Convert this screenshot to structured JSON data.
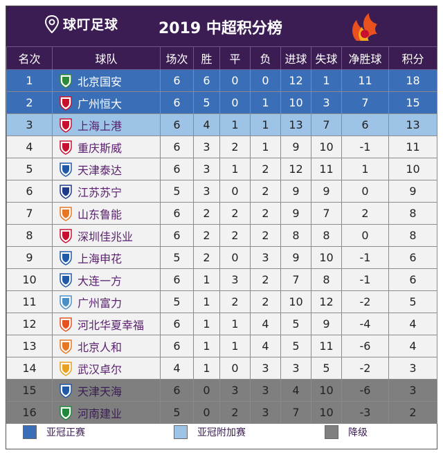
{
  "header": {
    "logo_text": "球叮足球",
    "title": "2019 中超积分榜"
  },
  "columns": [
    "名次",
    "球队",
    "场次",
    "胜",
    "平",
    "负",
    "进球",
    "失球",
    "净胜球",
    "积分"
  ],
  "colors": {
    "header_bg": "#3b1d53",
    "acl_direct": "#3a6fb8",
    "acl_playoff": "#9dc3e6",
    "relegation": "#7f7f7f",
    "normal": "#f2f2f2"
  },
  "rows": [
    {
      "rank": "1",
      "team": "北京国安",
      "played": "6",
      "won": "6",
      "drawn": "0",
      "lost": "0",
      "gf": "12",
      "ga": "1",
      "gd": "11",
      "pts": "18",
      "zone": "acl",
      "crest": "#2e8b3a"
    },
    {
      "rank": "2",
      "team": "广州恒大",
      "played": "6",
      "won": "5",
      "drawn": "0",
      "lost": "1",
      "gf": "10",
      "ga": "3",
      "gd": "7",
      "pts": "15",
      "zone": "acl",
      "crest": "#c8102e"
    },
    {
      "rank": "3",
      "team": "上海上港",
      "played": "6",
      "won": "4",
      "drawn": "1",
      "lost": "1",
      "gf": "13",
      "ga": "7",
      "gd": "6",
      "pts": "13",
      "zone": "pre",
      "crest": "#c8102e"
    },
    {
      "rank": "4",
      "team": "重庆斯威",
      "played": "6",
      "won": "3",
      "drawn": "2",
      "lost": "1",
      "gf": "9",
      "ga": "10",
      "gd": "-1",
      "pts": "11",
      "zone": "norm",
      "crest": "#c8102e"
    },
    {
      "rank": "5",
      "team": "天津泰达",
      "played": "6",
      "won": "3",
      "drawn": "1",
      "lost": "2",
      "gf": "12",
      "ga": "11",
      "gd": "1",
      "pts": "10",
      "zone": "norm",
      "crest": "#1e5aa8"
    },
    {
      "rank": "6",
      "team": "江苏苏宁",
      "played": "5",
      "won": "3",
      "drawn": "0",
      "lost": "2",
      "gf": "9",
      "ga": "9",
      "gd": "0",
      "pts": "9",
      "zone": "norm",
      "crest": "#1e3a8a"
    },
    {
      "rank": "7",
      "team": "山东鲁能",
      "played": "6",
      "won": "2",
      "drawn": "2",
      "lost": "2",
      "gf": "9",
      "ga": "7",
      "gd": "2",
      "pts": "8",
      "zone": "norm",
      "crest": "#e87722"
    },
    {
      "rank": "8",
      "team": "深圳佳兆业",
      "played": "6",
      "won": "2",
      "drawn": "2",
      "lost": "2",
      "gf": "8",
      "ga": "8",
      "gd": "0",
      "pts": "8",
      "zone": "norm",
      "crest": "#c8102e"
    },
    {
      "rank": "9",
      "team": "上海申花",
      "played": "5",
      "won": "2",
      "drawn": "0",
      "lost": "3",
      "gf": "9",
      "ga": "10",
      "gd": "-1",
      "pts": "6",
      "zone": "norm",
      "crest": "#1e5aa8"
    },
    {
      "rank": "10",
      "team": "大连一方",
      "played": "6",
      "won": "1",
      "drawn": "3",
      "lost": "2",
      "gf": "7",
      "ga": "8",
      "gd": "-1",
      "pts": "6",
      "zone": "norm",
      "crest": "#1e5aa8"
    },
    {
      "rank": "11",
      "team": "广州富力",
      "played": "5",
      "won": "1",
      "drawn": "2",
      "lost": "2",
      "gf": "10",
      "ga": "12",
      "gd": "-2",
      "pts": "5",
      "zone": "norm",
      "crest": "#4a90c8"
    },
    {
      "rank": "12",
      "team": "河北华夏幸福",
      "played": "6",
      "won": "1",
      "drawn": "1",
      "lost": "4",
      "gf": "5",
      "ga": "9",
      "gd": "-4",
      "pts": "4",
      "zone": "norm",
      "crest": "#e8501e"
    },
    {
      "rank": "13",
      "team": "北京人和",
      "played": "6",
      "won": "1",
      "drawn": "1",
      "lost": "4",
      "gf": "5",
      "ga": "11",
      "gd": "-6",
      "pts": "4",
      "zone": "norm",
      "crest": "#e87722"
    },
    {
      "rank": "14",
      "team": "武汉卓尔",
      "played": "4",
      "won": "1",
      "drawn": "0",
      "lost": "3",
      "gf": "3",
      "ga": "5",
      "gd": "-2",
      "pts": "3",
      "zone": "norm",
      "crest": "#e8a01e"
    },
    {
      "rank": "15",
      "team": "天津天海",
      "played": "6",
      "won": "0",
      "drawn": "3",
      "lost": "3",
      "gf": "4",
      "ga": "10",
      "gd": "-6",
      "pts": "3",
      "zone": "rel",
      "crest": "#1e5aa8"
    },
    {
      "rank": "16",
      "team": "河南建业",
      "played": "5",
      "won": "0",
      "drawn": "2",
      "lost": "3",
      "gf": "7",
      "ga": "10",
      "gd": "-3",
      "pts": "2",
      "zone": "rel",
      "crest": "#1e8a3a"
    }
  ],
  "legend": [
    {
      "label": "亚冠正赛",
      "color": "#3a6fb8"
    },
    {
      "label": "亚冠附加赛",
      "color": "#9dc3e6"
    },
    {
      "label": "降级",
      "color": "#7f7f7f"
    }
  ]
}
